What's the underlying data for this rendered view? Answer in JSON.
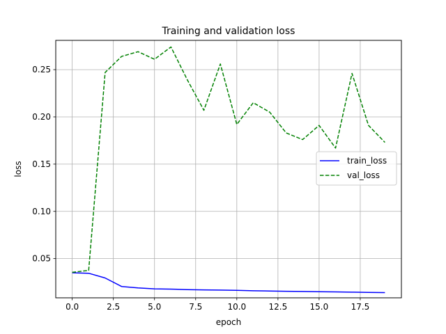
{
  "chart_data": {
    "type": "line",
    "title": "Training and validation loss",
    "xlabel": "epoch",
    "ylabel": "loss",
    "xlim": [
      -1,
      20
    ],
    "ylim": [
      0.0085,
      0.281
    ],
    "xticks": [
      0.0,
      2.5,
      5.0,
      7.5,
      10.0,
      12.5,
      15.0,
      17.5
    ],
    "xtick_labels": [
      "0.0",
      "2.5",
      "5.0",
      "7.5",
      "10.0",
      "12.5",
      "15.0",
      "17.5"
    ],
    "yticks": [
      0.05,
      0.1,
      0.15,
      0.2,
      0.25
    ],
    "ytick_labels": [
      "0.05",
      "0.10",
      "0.15",
      "0.20",
      "0.25"
    ],
    "grid": true,
    "legend_position": "center-right",
    "x": [
      0,
      1,
      2,
      3,
      4,
      5,
      6,
      7,
      8,
      9,
      10,
      11,
      12,
      13,
      14,
      15,
      16,
      17,
      18,
      19
    ],
    "series": [
      {
        "name": "train_loss",
        "color": "#0000ff",
        "style": "solid",
        "values": [
          0.035,
          0.0345,
          0.0295,
          0.0205,
          0.019,
          0.018,
          0.0177,
          0.0172,
          0.0169,
          0.0167,
          0.0164,
          0.016,
          0.0157,
          0.0154,
          0.0152,
          0.0149,
          0.0148,
          0.0145,
          0.0142,
          0.014
        ]
      },
      {
        "name": "val_loss",
        "color": "#008000",
        "style": "dashed",
        "values": [
          0.0355,
          0.0375,
          0.247,
          0.264,
          0.269,
          0.261,
          0.274,
          0.239,
          0.207,
          0.256,
          0.192,
          0.215,
          0.205,
          0.183,
          0.176,
          0.191,
          0.167,
          0.246,
          0.191,
          0.173
        ]
      }
    ]
  }
}
